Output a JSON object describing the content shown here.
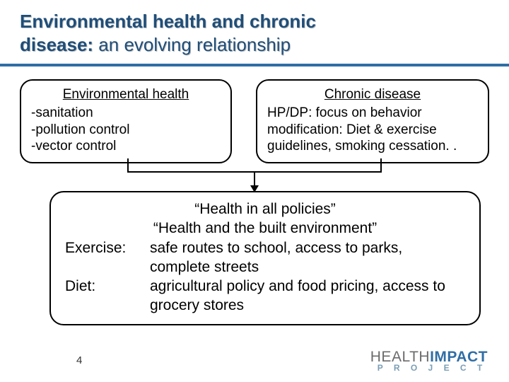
{
  "title": {
    "strong1": "Environmental health and chronic",
    "strong2": "disease:",
    "plain": " an evolving relationship"
  },
  "boxes": {
    "left": {
      "heading": "Environmental health",
      "lines": [
        "-sanitation",
        "-pollution control",
        "-vector control"
      ]
    },
    "right": {
      "heading": "Chronic disease",
      "lines": [
        "HP/DP: focus on behavior",
        "modification:  Diet & exercise",
        "guidelines, smoking cessation. ."
      ]
    }
  },
  "merge": {
    "center1": "“Health in all policies”",
    "center2": "“Health and the built environment”",
    "rows": [
      {
        "label": "Exercise:",
        "text": "safe routes to school, access to parks, complete streets"
      },
      {
        "label": "Diet:",
        "text": "agricultural policy and food pricing, access to grocery stores"
      }
    ]
  },
  "pageNumber": "4",
  "logo": {
    "word1": "HEALTH",
    "word2": "IMPACT",
    "sub": "P R O J E C T"
  },
  "style": {
    "accent": "#2f6ea5",
    "titleColor": "#1f4e79",
    "background": "#ffffff",
    "font": "Arial"
  }
}
